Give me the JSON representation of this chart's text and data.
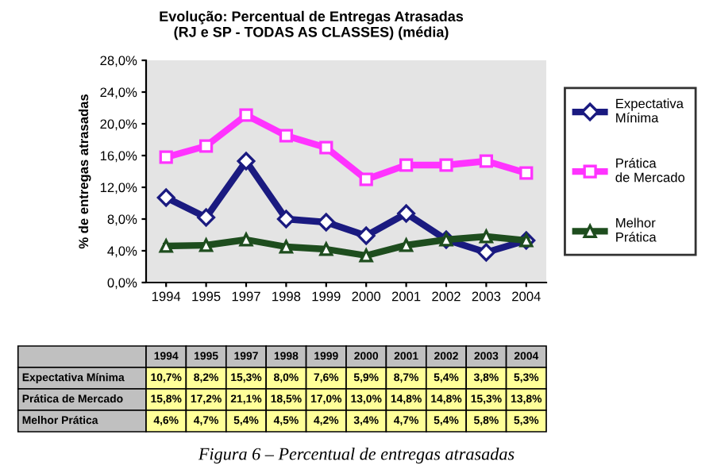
{
  "chart_data": {
    "type": "line",
    "title": "Evolução: Percentual de Entregas Atrasadas\n(RJ e SP - TODAS AS CLASSES) (média)",
    "ylabel": "% de entregas atrasadas",
    "categories": [
      "1994",
      "1995",
      "1997",
      "1998",
      "1999",
      "2000",
      "2001",
      "2002",
      "2003",
      "2004"
    ],
    "ylim": [
      0,
      28
    ],
    "yticks": [
      {
        "value": 0,
        "label": "0,0%"
      },
      {
        "value": 4,
        "label": "4,0%"
      },
      {
        "value": 8,
        "label": "8,0%"
      },
      {
        "value": 12,
        "label": "12,0%"
      },
      {
        "value": 16,
        "label": "16,0%"
      },
      {
        "value": 20,
        "label": "20,0%"
      },
      {
        "value": 24,
        "label": "24,0%"
      },
      {
        "value": 28,
        "label": "28,0%"
      }
    ],
    "legend": "right",
    "grid": false,
    "line_style": "solid",
    "series": [
      {
        "name": "Expectativa Mínima",
        "color": "#1a1a80",
        "marker": "diamond",
        "values": [
          10.7,
          8.2,
          15.3,
          8.0,
          7.6,
          5.9,
          8.7,
          5.4,
          3.8,
          5.3
        ],
        "value_labels": [
          "10,7%",
          "8,2%",
          "15,3%",
          "8,0%",
          "7,6%",
          "5,9%",
          "8,7%",
          "5,4%",
          "3,8%",
          "5,3%"
        ]
      },
      {
        "name": "Prática de Mercado",
        "color": "#ff33ff",
        "marker": "square",
        "values": [
          15.8,
          17.2,
          21.1,
          18.5,
          17.0,
          13.0,
          14.8,
          14.8,
          15.3,
          13.8
        ],
        "value_labels": [
          "15,8%",
          "17,2%",
          "21,1%",
          "18,5%",
          "17,0%",
          "13,0%",
          "14,8%",
          "14,8%",
          "15,3%",
          "13,8%"
        ]
      },
      {
        "name": "Melhor Prática",
        "color": "#1e4d1e",
        "marker": "triangle",
        "values": [
          4.6,
          4.7,
          5.4,
          4.5,
          4.2,
          3.4,
          4.7,
          5.4,
          5.8,
          5.3
        ],
        "value_labels": [
          "4,6%",
          "4,7%",
          "5,4%",
          "4,5%",
          "4,2%",
          "3,4%",
          "4,7%",
          "5,4%",
          "5,8%",
          "5,3%"
        ]
      }
    ],
    "annotations": [
      "Figura 6 – Percentual de entregas atrasadas"
    ]
  }
}
